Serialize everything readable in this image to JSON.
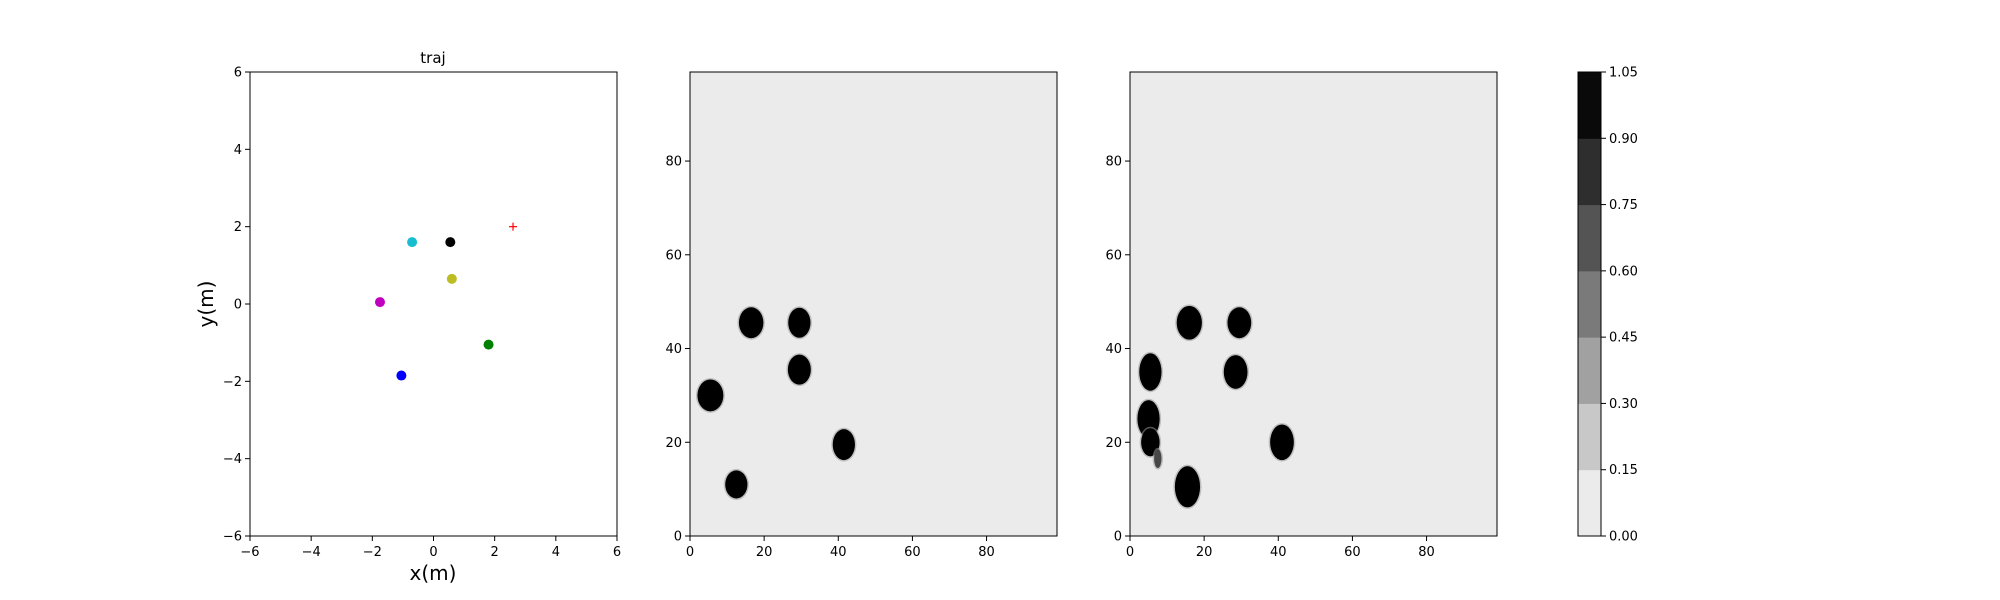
{
  "chart_data": [
    {
      "type": "scatter",
      "title": "traj",
      "xlabel": "x(m)",
      "ylabel": "y(m)",
      "xlim": [
        -6,
        6
      ],
      "ylim": [
        -6,
        6
      ],
      "xticks": [
        -6,
        -4,
        -2,
        0,
        2,
        4,
        6
      ],
      "yticks": [
        -6,
        -4,
        -2,
        0,
        2,
        4,
        6
      ],
      "grid": false,
      "points": [
        {
          "x": -0.7,
          "y": 1.6,
          "color": "#17becf",
          "marker": "circle"
        },
        {
          "x": 0.55,
          "y": 1.6,
          "color": "#000000",
          "marker": "circle"
        },
        {
          "x": 0.6,
          "y": 0.65,
          "color": "#bcbd22",
          "marker": "circle"
        },
        {
          "x": -1.75,
          "y": 0.05,
          "color": "#bf00bf",
          "marker": "circle"
        },
        {
          "x": 1.8,
          "y": -1.05,
          "color": "#008000",
          "marker": "circle"
        },
        {
          "x": -1.05,
          "y": -1.85,
          "color": "#0000ff",
          "marker": "circle"
        },
        {
          "x": 2.6,
          "y": 2.0,
          "color": "#ff0000",
          "marker": "plus"
        }
      ]
    },
    {
      "type": "heatmap",
      "title": "",
      "xlim": [
        0,
        99
      ],
      "ylim": [
        0,
        99
      ],
      "xticks": [
        0,
        20,
        40,
        60,
        80
      ],
      "yticks": [
        0,
        20,
        40,
        60,
        80
      ],
      "background_value": 0.05,
      "blobs": [
        {
          "x": 16.5,
          "y": 45.5,
          "rx": 3.3,
          "ry": 3.3,
          "value": 1.0
        },
        {
          "x": 29.5,
          "y": 45.5,
          "rx": 3.0,
          "ry": 3.2,
          "value": 1.0
        },
        {
          "x": 29.5,
          "y": 35.5,
          "rx": 3.1,
          "ry": 3.2,
          "value": 1.0
        },
        {
          "x": 5.5,
          "y": 30.0,
          "rx": 3.5,
          "ry": 3.4,
          "value": 1.0
        },
        {
          "x": 41.5,
          "y": 19.5,
          "rx": 3.0,
          "ry": 3.3,
          "value": 1.0
        },
        {
          "x": 12.5,
          "y": 11.0,
          "rx": 3.0,
          "ry": 3.0,
          "value": 1.0
        }
      ]
    },
    {
      "type": "heatmap",
      "title": "",
      "xlim": [
        0,
        99
      ],
      "ylim": [
        0,
        99
      ],
      "xticks": [
        0,
        20,
        40,
        60,
        80
      ],
      "yticks": [
        0,
        20,
        40,
        60,
        80
      ],
      "background_value": 0.05,
      "blobs": [
        {
          "x": 16.0,
          "y": 45.5,
          "rx": 3.4,
          "ry": 3.6,
          "value": 1.0
        },
        {
          "x": 29.5,
          "y": 45.5,
          "rx": 3.2,
          "ry": 3.3,
          "value": 1.0
        },
        {
          "x": 28.5,
          "y": 35.0,
          "rx": 3.2,
          "ry": 3.6,
          "value": 1.0
        },
        {
          "x": 5.5,
          "y": 35.0,
          "rx": 3.0,
          "ry": 4.0,
          "value": 1.0
        },
        {
          "x": 5.0,
          "y": 25.0,
          "rx": 3.0,
          "ry": 4.0,
          "value": 1.0
        },
        {
          "x": 5.5,
          "y": 20.0,
          "rx": 2.5,
          "ry": 3.0,
          "value": 1.0
        },
        {
          "x": 7.5,
          "y": 16.5,
          "rx": 1.0,
          "ry": 2.0,
          "value": 0.7
        },
        {
          "x": 41.0,
          "y": 20.0,
          "rx": 3.2,
          "ry": 3.8,
          "value": 1.0
        },
        {
          "x": 15.5,
          "y": 10.5,
          "rx": 3.4,
          "ry": 4.4,
          "value": 1.0
        }
      ]
    },
    {
      "type": "colorbar",
      "levels": [
        "0.00",
        "0.15",
        "0.30",
        "0.45",
        "0.60",
        "0.75",
        "0.90",
        "1.05"
      ],
      "colors": [
        "#ebebeb",
        "#c8c8c8",
        "#a1a1a1",
        "#7a7a7a",
        "#545454",
        "#2e2e2e",
        "#0a0a0a"
      ]
    }
  ]
}
